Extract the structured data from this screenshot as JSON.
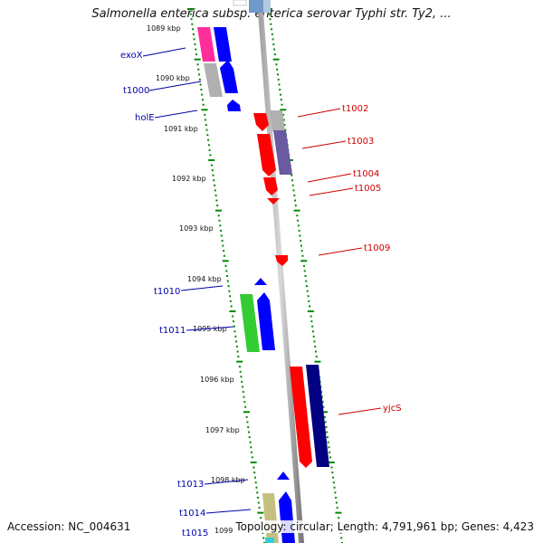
{
  "title": "Salmonella enterica subsp. enterica serovar Typhi str. Ty2, ...",
  "footer": {
    "accession": "Accession: NC_004631",
    "topology": "Topology: circular; Length: 4,791,961 bp; Genes: 4,423"
  },
  "kbp_labels": [
    "1089 kbp",
    "1090 kbp",
    "1091 kbp",
    "1092 kbp",
    "1093 kbp",
    "1094 kbp",
    "1095 kbp",
    "1096 kbp",
    "1097 kbp",
    "1098 kbp",
    "1099"
  ],
  "genes_left": [
    "exoX",
    "t1000",
    "holE",
    "t1010",
    "t1011",
    "t1013",
    "t1014",
    "t1015"
  ],
  "genes_right": [
    "t1002",
    "t1003",
    "t1004",
    "t1005",
    "t1009",
    "yjcS"
  ],
  "colors": {
    "magenta": "#ff2d9a",
    "blue": "#0000ff",
    "grey": "#b0b0b0",
    "red": "#ff0000",
    "slate": "#6a5aa0",
    "green": "#33cc33",
    "navy": "#000080",
    "khaki": "#c4c080",
    "cyan": "#33ccdd",
    "steel": "#6f99c8",
    "dots": "#008800"
  }
}
